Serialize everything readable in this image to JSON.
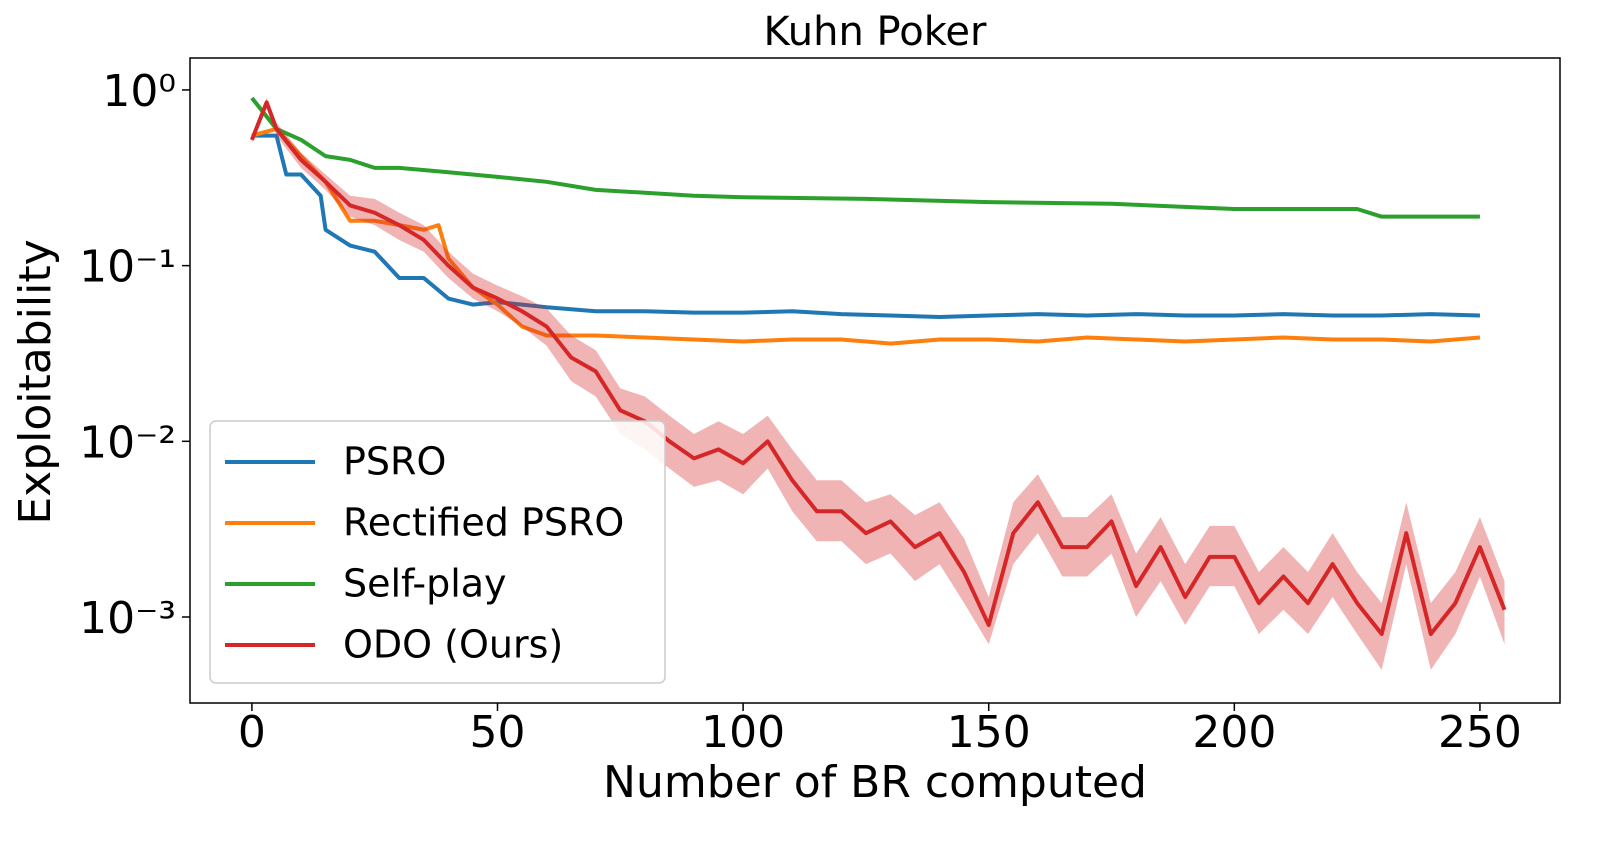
{
  "chart_data": {
    "type": "line",
    "title": "Kuhn Poker",
    "x_label": "Number of BR computed",
    "y_label": "Exploitability",
    "log_y": true,
    "legend": "lower left",
    "xlim": [
      -12.6,
      266.3
    ],
    "xticks": [
      0,
      50,
      100,
      150,
      200,
      250
    ],
    "ylim": [
      0.000324,
      1.52
    ],
    "yticks": [
      {
        "value": 1,
        "label": "10⁰"
      },
      {
        "value": 0.1,
        "label": "10⁻¹"
      },
      {
        "value": 0.01,
        "label": "10⁻²"
      },
      {
        "value": 0.001,
        "label": "10⁻³"
      }
    ],
    "series": [
      {
        "name": "PSRO",
        "color": "#1f77b4",
        "x": [
          0,
          5,
          7,
          10,
          14,
          15,
          20,
          25,
          30,
          35,
          40,
          45,
          50,
          55,
          60,
          70,
          80,
          90,
          100,
          110,
          120,
          130,
          140,
          150,
          160,
          170,
          180,
          190,
          200,
          210,
          220,
          230,
          240,
          250
        ],
        "values": [
          0.55,
          0.55,
          0.33,
          0.33,
          0.25,
          0.16,
          0.13,
          0.12,
          0.085,
          0.085,
          0.065,
          0.06,
          0.062,
          0.06,
          0.058,
          0.055,
          0.055,
          0.054,
          0.054,
          0.055,
          0.053,
          0.052,
          0.051,
          0.052,
          0.053,
          0.052,
          0.053,
          0.052,
          0.052,
          0.053,
          0.052,
          0.052,
          0.053,
          0.052
        ]
      },
      {
        "name": "Rectified PSRO",
        "color": "#ff7f0e",
        "x": [
          0,
          5,
          10,
          15,
          20,
          25,
          30,
          35,
          38,
          40,
          45,
          50,
          55,
          60,
          70,
          80,
          90,
          100,
          110,
          120,
          130,
          140,
          150,
          160,
          170,
          180,
          190,
          200,
          210,
          220,
          230,
          240,
          250
        ],
        "values": [
          0.55,
          0.6,
          0.42,
          0.3,
          0.18,
          0.18,
          0.17,
          0.16,
          0.17,
          0.11,
          0.075,
          0.06,
          0.045,
          0.04,
          0.04,
          0.039,
          0.038,
          0.037,
          0.038,
          0.038,
          0.036,
          0.038,
          0.038,
          0.037,
          0.039,
          0.038,
          0.037,
          0.038,
          0.039,
          0.038,
          0.038,
          0.037,
          0.039
        ]
      },
      {
        "name": "Self-play",
        "color": "#2ca02c",
        "x": [
          0,
          5,
          10,
          15,
          20,
          25,
          30,
          40,
          50,
          60,
          70,
          80,
          90,
          100,
          125,
          150,
          175,
          200,
          225,
          230,
          250
        ],
        "values": [
          0.9,
          0.6,
          0.52,
          0.42,
          0.4,
          0.36,
          0.36,
          0.34,
          0.32,
          0.3,
          0.27,
          0.26,
          0.25,
          0.245,
          0.24,
          0.23,
          0.225,
          0.21,
          0.21,
          0.19,
          0.19
        ]
      },
      {
        "name": "ODO (Ours)",
        "color": "#d62728",
        "x": [
          0,
          3,
          5,
          10,
          15,
          20,
          25,
          30,
          35,
          40,
          45,
          50,
          55,
          60,
          65,
          70,
          75,
          80,
          85,
          90,
          95,
          100,
          105,
          110,
          115,
          120,
          125,
          130,
          135,
          140,
          145,
          150,
          155,
          160,
          165,
          170,
          175,
          180,
          185,
          190,
          195,
          200,
          205,
          210,
          215,
          220,
          225,
          230,
          235,
          240,
          245,
          250,
          255
        ],
        "values": [
          0.52,
          0.85,
          0.6,
          0.4,
          0.3,
          0.22,
          0.2,
          0.17,
          0.14,
          0.1,
          0.075,
          0.065,
          0.055,
          0.045,
          0.03,
          0.025,
          0.015,
          0.013,
          0.01,
          0.008,
          0.009,
          0.0075,
          0.01,
          0.006,
          0.004,
          0.004,
          0.003,
          0.0035,
          0.0025,
          0.003,
          0.0018,
          0.0009,
          0.003,
          0.0045,
          0.0025,
          0.0025,
          0.0035,
          0.0015,
          0.0025,
          0.0013,
          0.0022,
          0.0022,
          0.0012,
          0.0017,
          0.0012,
          0.002,
          0.0012,
          0.0008,
          0.003,
          0.0008,
          0.0012,
          0.0025,
          0.0011
        ],
        "lower": [
          0.5,
          0.8,
          0.55,
          0.36,
          0.27,
          0.19,
          0.17,
          0.14,
          0.12,
          0.085,
          0.065,
          0.055,
          0.045,
          0.035,
          0.022,
          0.018,
          0.011,
          0.009,
          0.007,
          0.0055,
          0.006,
          0.005,
          0.007,
          0.004,
          0.0027,
          0.0027,
          0.002,
          0.0023,
          0.0016,
          0.002,
          0.0012,
          0.0007,
          0.002,
          0.003,
          0.0017,
          0.0017,
          0.0023,
          0.001,
          0.0016,
          0.0009,
          0.0015,
          0.0015,
          0.0008,
          0.0011,
          0.0008,
          0.0013,
          0.0008,
          0.0005,
          0.002,
          0.0005,
          0.0008,
          0.0017,
          0.0007
        ],
        "upper": [
          0.55,
          0.9,
          0.65,
          0.44,
          0.33,
          0.25,
          0.24,
          0.2,
          0.17,
          0.12,
          0.09,
          0.077,
          0.067,
          0.057,
          0.04,
          0.033,
          0.02,
          0.018,
          0.014,
          0.011,
          0.013,
          0.011,
          0.014,
          0.009,
          0.006,
          0.006,
          0.0045,
          0.005,
          0.0038,
          0.0045,
          0.0028,
          0.0013,
          0.0045,
          0.0065,
          0.0037,
          0.0037,
          0.005,
          0.0023,
          0.0037,
          0.002,
          0.0033,
          0.0033,
          0.0018,
          0.0025,
          0.0018,
          0.003,
          0.0018,
          0.0012,
          0.0045,
          0.0012,
          0.0018,
          0.0037,
          0.0016
        ]
      }
    ]
  }
}
